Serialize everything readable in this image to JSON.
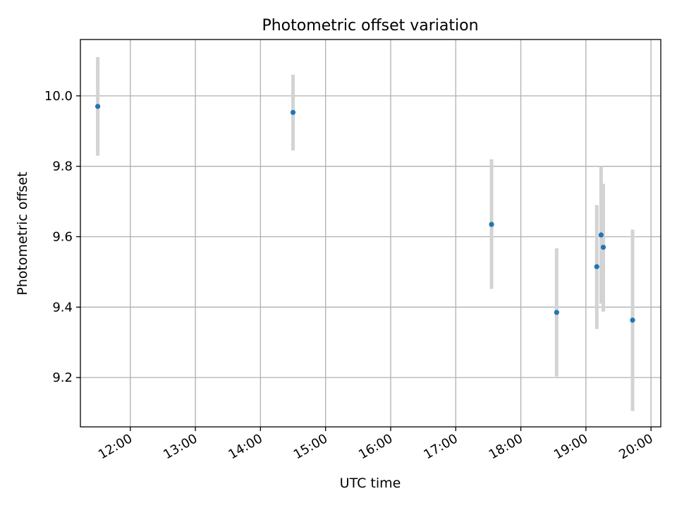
{
  "chart_data": {
    "type": "scatter",
    "title": "Photometric offset variation",
    "xlabel": "UTC time",
    "ylabel": "Photometric offset",
    "grid": true,
    "xlim": [
      "11:14",
      "20:09"
    ],
    "ylim": [
      9.06,
      10.16
    ],
    "x_ticks": [
      "12:00",
      "13:00",
      "14:00",
      "15:00",
      "16:00",
      "17:00",
      "18:00",
      "19:00",
      "20:00"
    ],
    "y_ticks": [
      9.2,
      9.4,
      9.6,
      9.8,
      10.0
    ],
    "y_tick_labels": [
      "9.2",
      "9.4",
      "9.6",
      "9.8",
      "10.0"
    ],
    "points": [
      {
        "x": "11:30",
        "y": 9.97,
        "err_low": 9.83,
        "err_high": 10.11
      },
      {
        "x": "14:30",
        "y": 9.953,
        "err_low": 9.845,
        "err_high": 10.06
      },
      {
        "x": "17:33",
        "y": 9.635,
        "err_low": 9.452,
        "err_high": 9.82
      },
      {
        "x": "18:33",
        "y": 9.385,
        "err_low": 9.203,
        "err_high": 9.567
      },
      {
        "x": "19:10",
        "y": 9.515,
        "err_low": 9.338,
        "err_high": 9.69
      },
      {
        "x": "19:14",
        "y": 9.605,
        "err_low": 9.41,
        "err_high": 9.8
      },
      {
        "x": "19:16",
        "y": 9.57,
        "err_low": 9.387,
        "err_high": 9.75
      },
      {
        "x": "19:43",
        "y": 9.363,
        "err_low": 9.105,
        "err_high": 9.62
      }
    ],
    "colors": {
      "marker": "#1f77b4",
      "errorbar": "#d3d3d3",
      "grid": "#b0b0b0"
    }
  }
}
